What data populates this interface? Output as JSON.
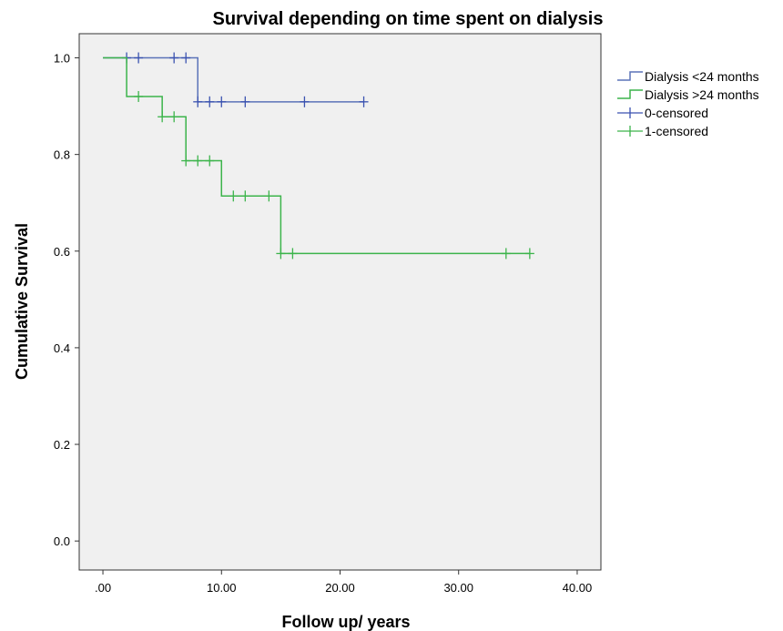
{
  "chart_data": {
    "type": "line",
    "title": "Survival depending on time spent on dialysis",
    "xlabel": "Follow up/ years",
    "ylabel": "Cumulative Survival",
    "xlim": [
      -2,
      42
    ],
    "ylim": [
      -0.06,
      1.05
    ],
    "xticks": [
      0,
      10,
      20,
      30,
      40
    ],
    "xtick_labels": [
      ".00",
      "10.00",
      "20.00",
      "30.00",
      "40.00"
    ],
    "yticks": [
      0.0,
      0.2,
      0.4,
      0.6,
      0.8,
      1.0
    ],
    "ytick_labels": [
      "0.0",
      "0.2",
      "0.4",
      "0.6",
      "0.8",
      "1.0"
    ],
    "grid": false,
    "background": "#f0f0f0",
    "legend": {
      "placement": "outside-right",
      "entries": [
        {
          "label": "Dialysis <24 months",
          "color": "#5b73b8",
          "marker": "line"
        },
        {
          "label": "Dialysis >24 months",
          "color": "#3cb44b",
          "marker": "line"
        },
        {
          "label": "0-censored",
          "color": "#3a52b0",
          "marker": "plus"
        },
        {
          "label": "1-censored",
          "color": "#3cb44b",
          "marker": "plus"
        }
      ]
    },
    "series": [
      {
        "name": "Dialysis <24 months",
        "color": "#5b73b8",
        "censor_color": "#3a52b0",
        "steps": [
          [
            0,
            1.0
          ],
          [
            8,
            0.909
          ],
          [
            22,
            0.909
          ]
        ],
        "censored": [
          [
            2,
            1.0
          ],
          [
            3,
            1.0
          ],
          [
            6,
            1.0
          ],
          [
            7,
            1.0
          ],
          [
            8,
            0.909
          ],
          [
            9,
            0.909
          ],
          [
            10,
            0.909
          ],
          [
            12,
            0.909
          ],
          [
            17,
            0.909
          ],
          [
            22,
            0.909
          ]
        ]
      },
      {
        "name": "Dialysis >24 months",
        "color": "#3cb44b",
        "censor_color": "#3cb44b",
        "steps": [
          [
            0,
            1.0
          ],
          [
            2,
            0.92
          ],
          [
            5,
            0.878
          ],
          [
            7,
            0.787
          ],
          [
            10,
            0.714
          ],
          [
            15,
            0.595
          ],
          [
            36,
            0.595
          ]
        ],
        "censored": [
          [
            3,
            0.92
          ],
          [
            5,
            0.878
          ],
          [
            6,
            0.878
          ],
          [
            7,
            0.787
          ],
          [
            8,
            0.787
          ],
          [
            9,
            0.787
          ],
          [
            11,
            0.714
          ],
          [
            12,
            0.714
          ],
          [
            14,
            0.714
          ],
          [
            15,
            0.595
          ],
          [
            16,
            0.595
          ],
          [
            34,
            0.595
          ],
          [
            36,
            0.595
          ]
        ]
      }
    ]
  }
}
